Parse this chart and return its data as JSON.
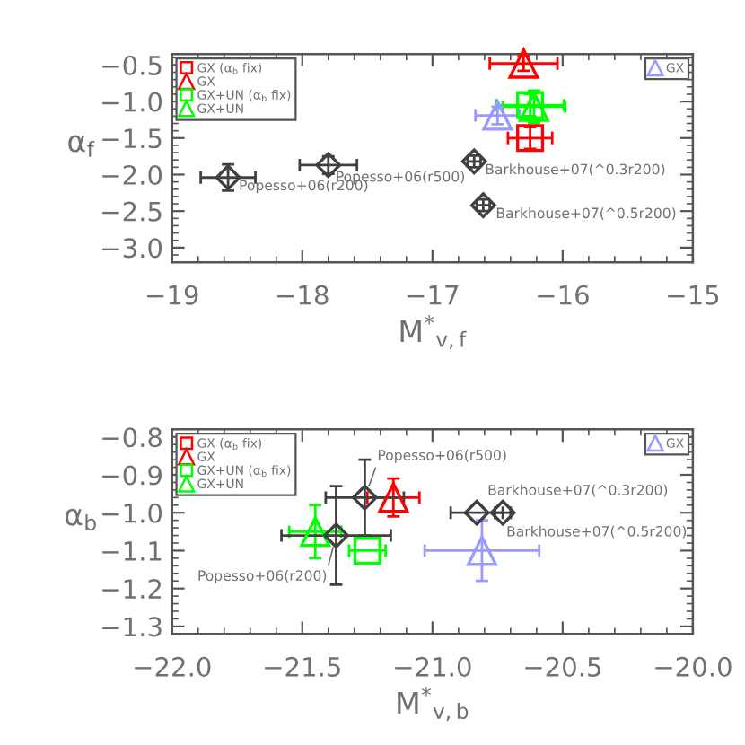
{
  "chart_data": [
    {
      "type": "scatter",
      "xlabel": "M$^{*}$$_{v,f}$",
      "ylabel": "α$_{f}$",
      "xlim": [
        -19,
        -15
      ],
      "xticks": [
        {
          "value": -19,
          "label": "−19"
        },
        {
          "value": -18,
          "label": "−18"
        },
        {
          "value": -17,
          "label": "−17"
        },
        {
          "value": -16,
          "label": "−16"
        },
        {
          "value": -15,
          "label": "−15"
        }
      ],
      "ylim": [
        -3.2,
        -0.35
      ],
      "yticks": [
        {
          "value": -0.5,
          "label": "−0.5"
        },
        {
          "value": -1.0,
          "label": "−1.0"
        },
        {
          "value": -1.5,
          "label": "−1.5"
        },
        {
          "value": -2.0,
          "label": "−2.0"
        },
        {
          "value": -2.5,
          "label": "−2.5"
        },
        {
          "value": -3.0,
          "label": "−3.0"
        }
      ],
      "legend": "top left",
      "series": [
        {
          "name": "GX (α$_{b}$ fix)",
          "color": "#ff0000",
          "marker": "square",
          "x": [
            -16.25
          ],
          "values": [
            -1.5
          ],
          "errors": [
            0.15
          ],
          "xerrors": [
            0.17
          ]
        },
        {
          "name": "GX",
          "color": "#ff0000",
          "marker": "triangle",
          "x": [
            -16.3
          ],
          "values": [
            -0.48
          ],
          "errors": [
            0.1
          ],
          "xerrors": [
            0.26
          ]
        },
        {
          "name": "GX+UN (α$_{b}$ fix)",
          "color": "#00ff00",
          "marker": "square",
          "x": [
            -16.25
          ],
          "values": [
            -1.05
          ],
          "errors": [
            0.15
          ],
          "xerrors": [
            0.26
          ]
        },
        {
          "name": "GX+UN",
          "color": "#00ff00",
          "marker": "triangle",
          "x": [
            -16.22
          ],
          "values": [
            -1.07
          ],
          "errors": [
            0.22
          ],
          "xerrors": [
            0.24
          ]
        },
        {
          "name": "GX",
          "color": "#9999ff",
          "marker": "triangle",
          "x": [
            -16.5
          ],
          "values": [
            -1.19
          ],
          "errors": [
            0.12
          ],
          "xerrors": [
            0.17
          ]
        },
        {
          "color": "#404040",
          "marker": "diamond",
          "x": [
            -18.57,
            -17.8,
            -16.68,
            -16.61
          ],
          "values": [
            -2.04,
            -1.87,
            -1.82,
            -2.42
          ],
          "errors": [
            0.18,
            0.12,
            0.08,
            0.08
          ],
          "xerrors": [
            0.21,
            0.22,
            0.05,
            0.05
          ]
        }
      ],
      "annotations": [
        {
          "text": "Popesso+06(r200)",
          "x": -18.57,
          "y": -2.04
        },
        {
          "text": "Popesso+06(r500)",
          "x": -17.8,
          "y": -1.87
        },
        {
          "text": "Barkhouse+07(^0.3r200)",
          "x": -16.68,
          "y": -1.82
        },
        {
          "text": "Barkhouse+07(^0.5r200)",
          "x": -16.61,
          "y": -2.42
        }
      ]
    },
    {
      "type": "scatter",
      "xlabel": "M$^{*}$$_{v,b}$",
      "ylabel": "α$_{b}$",
      "xlim": [
        -22,
        -20
      ],
      "xticks": [
        {
          "value": -22,
          "label": "−22.0"
        },
        {
          "value": -21.5,
          "label": "−21.5"
        },
        {
          "value": -21,
          "label": "−21.0"
        },
        {
          "value": -20.5,
          "label": "−20.5"
        },
        {
          "value": -20,
          "label": "−20.0"
        }
      ],
      "ylim": [
        -1.32,
        -0.78
      ],
      "yticks": [
        {
          "value": -0.8,
          "label": "−0.8"
        },
        {
          "value": -0.9,
          "label": "−0.9"
        },
        {
          "value": -1.0,
          "label": "−1.0"
        },
        {
          "value": -1.1,
          "label": "−1.1"
        },
        {
          "value": -1.2,
          "label": "−1.2"
        },
        {
          "value": -1.3,
          "label": "−1.3"
        }
      ],
      "legend": "top left",
      "series": [
        {
          "name": "GX (α$_{b}$ fix)",
          "color": "#ff0000",
          "marker": "square",
          "x": [
            null
          ],
          "values": [
            null
          ]
        },
        {
          "name": "GX",
          "color": "#ff0000",
          "marker": "triangle",
          "x": [
            -21.15
          ],
          "values": [
            -0.96
          ],
          "errors": [
            0.05
          ],
          "xerrors": [
            0.1
          ]
        },
        {
          "name": "GX+UN (α$_{b}$ fix)",
          "color": "#00ff00",
          "marker": "square",
          "x": [
            -21.25
          ],
          "values": [
            -1.1
          ],
          "xerrors": [
            0.07
          ]
        },
        {
          "name": "GX+UN",
          "color": "#00ff00",
          "marker": "triangle",
          "x": [
            -21.45
          ],
          "values": [
            -1.05
          ],
          "errors": [
            0.07
          ],
          "xerrors": [
            0.1
          ]
        },
        {
          "name": "GX",
          "color": "#9999ff",
          "marker": "triangle",
          "x": [
            -20.81
          ],
          "values": [
            -1.1
          ],
          "errors": [
            0.08
          ],
          "xerrors": [
            0.22
          ]
        },
        {
          "color": "#404040",
          "marker": "diamond",
          "x": [
            -21.37,
            -21.26,
            -20.83,
            -20.73
          ],
          "values": [
            -1.06,
            -0.96,
            -1.0,
            -1.0
          ],
          "errors": [
            0.13,
            0.1,
            null,
            null
          ],
          "xerrors": [
            0.21,
            0.15,
            0.1,
            0.03
          ]
        }
      ],
      "annotations": [
        {
          "text": "Popesso+06(r200)",
          "x": -21.37,
          "y": -1.06
        },
        {
          "text": "Popesso+06(r500)",
          "x": -21.26,
          "y": -0.96
        },
        {
          "text": "Barkhouse+07(^0.3r200)",
          "x": -20.83,
          "y": -1.0
        },
        {
          "text": "Barkhouse+07(^0.5r200)",
          "x": -20.73,
          "y": -1.0
        }
      ]
    }
  ]
}
